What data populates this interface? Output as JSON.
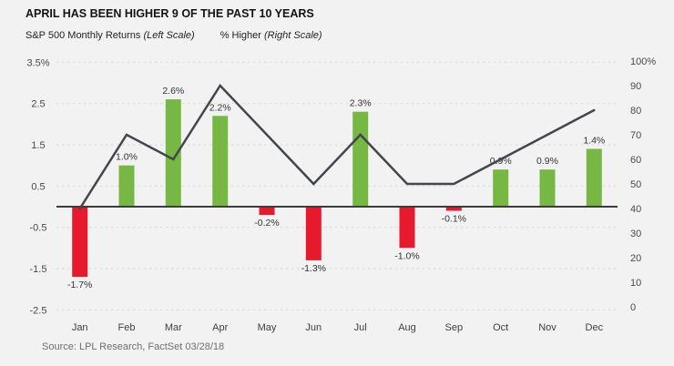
{
  "header": {
    "title": "APRIL HAS BEEN HIGHER 9 OF THE PAST 10 YEARS",
    "legend": {
      "series1_label": "S&P 500 Monthly Returns",
      "series1_scale": "(Left Scale)",
      "series2_label": "% Higher",
      "series2_scale": "(Right Scale)"
    }
  },
  "source": "Source: LPL Research, FactSet 03/28/18",
  "colors": {
    "background": "#f2f2f2",
    "bar_positive": "#76b843",
    "bar_negative": "#e6192d",
    "line": "#43464c",
    "grid": "#d7d7d7",
    "zero_axis": "#3c3c3c"
  },
  "chart_data": {
    "type": "bar",
    "subtype": "bar-with-line-overlay",
    "categories": [
      "Jan",
      "Feb",
      "Mar",
      "Apr",
      "May",
      "Jun",
      "Jul",
      "Aug",
      "Sep",
      "Oct",
      "Nov",
      "Dec"
    ],
    "series": [
      {
        "name": "S&P 500 Monthly Returns",
        "type": "bar",
        "axis": "left",
        "values": [
          -1.7,
          1.0,
          2.6,
          2.2,
          -0.2,
          -1.3,
          2.3,
          -1.0,
          -0.1,
          0.9,
          0.9,
          1.4
        ],
        "labels": [
          "-1.7%",
          "1.0%",
          "2.6%",
          "2.2%",
          "-0.2%",
          "-1.3%",
          "2.3%",
          "-1.0%",
          "-0.1%",
          "0.9%",
          "0.9%",
          "1.4%"
        ]
      },
      {
        "name": "% Higher",
        "type": "line",
        "axis": "right",
        "values": [
          40,
          70,
          60,
          90,
          70,
          50,
          70,
          50,
          50,
          60,
          70,
          80
        ]
      }
    ],
    "left_axis": {
      "ticks": [
        "3.5%",
        "2.5",
        "1.5",
        "0.5",
        "-0.5",
        "-1.5",
        "-2.5"
      ],
      "values": [
        3.5,
        2.5,
        1.5,
        0.5,
        -0.5,
        -1.5,
        -2.5
      ],
      "range": [
        -2.5,
        3.5
      ]
    },
    "right_axis": {
      "ticks": [
        "100%",
        "90",
        "80",
        "70",
        "60",
        "50",
        "40",
        "30",
        "20",
        "10",
        "0"
      ],
      "values": [
        100,
        90,
        80,
        70,
        60,
        50,
        40,
        30,
        20,
        10,
        0
      ],
      "range": [
        0,
        100
      ]
    },
    "grid": "dashed-horizontal",
    "legend_position": "top-left"
  }
}
